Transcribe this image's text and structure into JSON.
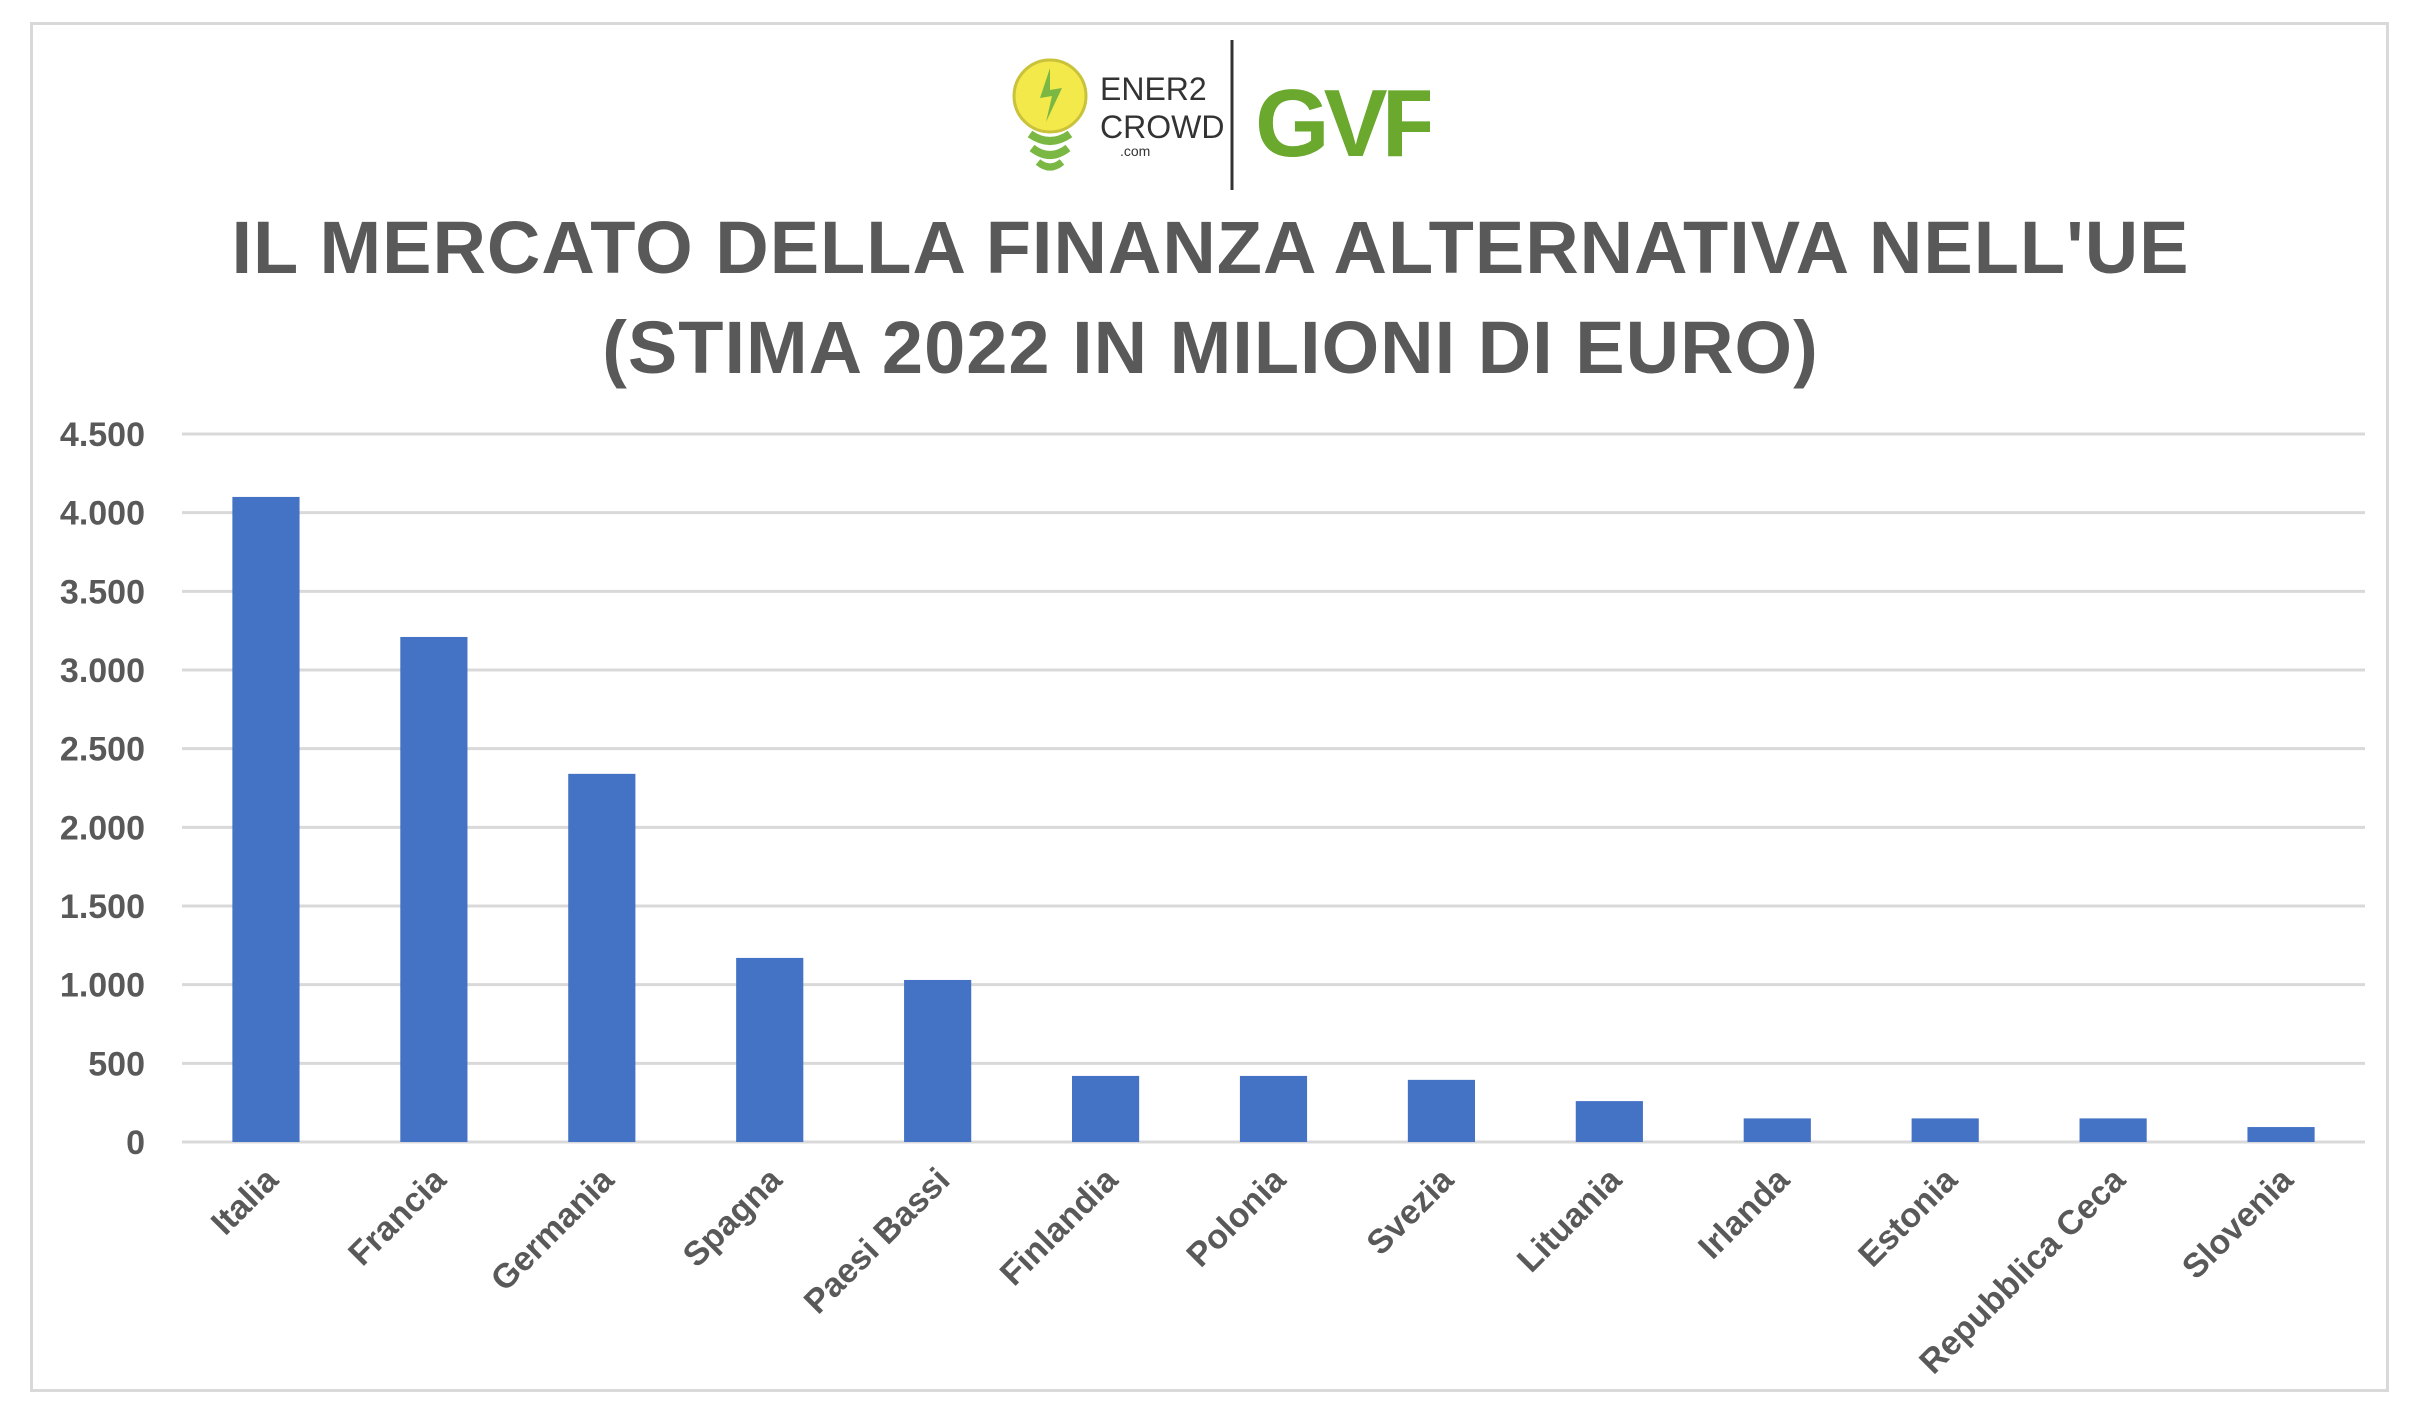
{
  "header": {
    "logo_left": {
      "text_line1": "ENER2",
      "text_line2": "CROWD",
      "text_suffix": ".com",
      "icon": "lightbulb-leaf-icon"
    },
    "logo_right": {
      "text": "GVF"
    }
  },
  "chart_data": {
    "type": "bar",
    "title_line1": "IL MERCATO DELLA FINANZA ALTERNATIVA NELL'UE",
    "title_line2": "(STIMA 2022 IN MILIONI DI EURO)",
    "categories": [
      "Italia",
      "Francia",
      "Germania",
      "Spagna",
      "Paesi Bassi",
      "Finlandia",
      "Polonia",
      "Svezia",
      "Lituania",
      "Irlanda",
      "Estonia",
      "Repubblica Ceca",
      "Slovenia"
    ],
    "values": [
      4100,
      3210,
      2340,
      1170,
      1030,
      420,
      420,
      395,
      260,
      150,
      150,
      150,
      95
    ],
    "ylim": [
      0,
      4500
    ],
    "yticks": [
      0,
      500,
      1000,
      1500,
      2000,
      2500,
      3000,
      3500,
      4000,
      4500
    ],
    "ytick_labels": [
      "0",
      "500",
      "1.000",
      "1.500",
      "2.000",
      "2.500",
      "3.000",
      "3.500",
      "4.000",
      "4.500"
    ],
    "grid": true,
    "bar_color": "#4472C4",
    "grid_color": "#d9d9d9",
    "label_color": "#595959"
  }
}
